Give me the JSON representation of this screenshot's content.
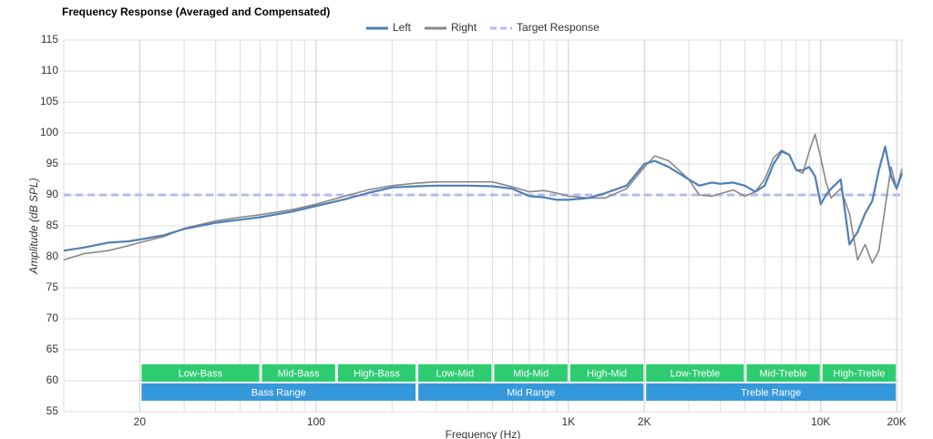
{
  "chart_data": {
    "type": "line",
    "title": "Frequency Response (Averaged and Compensated)",
    "xlabel": "Frequency (Hz)",
    "ylabel": "Amplitude (dB SPL)",
    "xscale": "log",
    "xlim": [
      10,
      21000
    ],
    "ylim": [
      55,
      115
    ],
    "xticks": [
      20,
      100,
      {
        "value": 1000,
        "label": "1K"
      },
      {
        "value": 2000,
        "label": "2K"
      },
      {
        "value": 10000,
        "label": "10K"
      },
      {
        "value": 20000,
        "label": "20K"
      }
    ],
    "xminor": [
      10,
      30,
      40,
      50,
      60,
      70,
      80,
      90,
      200,
      300,
      400,
      500,
      600,
      700,
      800,
      900,
      3000,
      4000,
      5000,
      6000,
      7000,
      8000,
      9000
    ],
    "yticks": [
      55,
      60,
      65,
      70,
      75,
      80,
      85,
      90,
      95,
      100,
      105,
      110,
      115
    ],
    "grid": true,
    "x": [
      10,
      12,
      15,
      18,
      20,
      25,
      30,
      40,
      50,
      60,
      80,
      100,
      130,
      160,
      200,
      250,
      300,
      400,
      500,
      600,
      700,
      800,
      900,
      1000,
      1200,
      1400,
      1700,
      2000,
      2200,
      2500,
      3000,
      3300,
      3700,
      4000,
      4500,
      5000,
      5500,
      6000,
      6500,
      7000,
      7500,
      8000,
      8500,
      9000,
      9500,
      10000,
      10500,
      11000,
      12000,
      13000,
      14000,
      15000,
      16000,
      17000,
      18000,
      19000,
      20000,
      21000
    ],
    "series": [
      {
        "name": "Left",
        "color": "#4f7fb5",
        "width": 2.2,
        "values": [
          81,
          81.5,
          82.3,
          82.5,
          82.8,
          83.5,
          84.5,
          85.5,
          86,
          86.4,
          87.3,
          88.2,
          89.3,
          90.3,
          91.2,
          91.4,
          91.5,
          91.5,
          91.4,
          91,
          89.8,
          89.6,
          89.2,
          89.2,
          89.5,
          90.3,
          91.5,
          95,
          95.5,
          94.5,
          92.5,
          91.5,
          92,
          91.8,
          92,
          91.5,
          90.5,
          91.5,
          95,
          97,
          96.5,
          94,
          94,
          94.5,
          93,
          88.5,
          90,
          91,
          92.5,
          82,
          84,
          87,
          89,
          94,
          97.8,
          93,
          91,
          93.5
        ]
      },
      {
        "name": "Right",
        "color": "#888888",
        "width": 1.6,
        "values": [
          79.5,
          80.5,
          81,
          81.8,
          82.3,
          83.3,
          84.6,
          85.8,
          86.4,
          86.8,
          87.6,
          88.5,
          89.8,
          90.8,
          91.5,
          91.9,
          92.1,
          92.1,
          92.1,
          91.3,
          90.5,
          90.7,
          90.3,
          89.8,
          89.5,
          89.5,
          91,
          94.5,
          96.3,
          95.5,
          92.5,
          90,
          89.8,
          90.2,
          90.8,
          89.8,
          90.5,
          92.5,
          96,
          97.2,
          96.5,
          94,
          93.5,
          97,
          99.8,
          96,
          92,
          89.5,
          91,
          87,
          79.5,
          82,
          79,
          81,
          88,
          94.5,
          91,
          94.2
        ]
      }
    ],
    "target": {
      "name": "Target Response",
      "value": 90,
      "color": "#b8b8f0"
    },
    "bands": [
      {
        "label": "Low-Bass",
        "from": 20,
        "to": 60,
        "row": 0
      },
      {
        "label": "Mid-Bass",
        "from": 60,
        "to": 120,
        "row": 0
      },
      {
        "label": "High-Bass",
        "from": 120,
        "to": 250,
        "row": 0
      },
      {
        "label": "Low-Mid",
        "from": 250,
        "to": 500,
        "row": 0
      },
      {
        "label": "Mid-Mid",
        "from": 500,
        "to": 1000,
        "row": 0
      },
      {
        "label": "High-Mid",
        "from": 1000,
        "to": 2000,
        "row": 0
      },
      {
        "label": "Low-Treble",
        "from": 2000,
        "to": 5000,
        "row": 0
      },
      {
        "label": "Mid-Treble",
        "from": 5000,
        "to": 10000,
        "row": 0
      },
      {
        "label": "High-Treble",
        "from": 10000,
        "to": 20000,
        "row": 0
      },
      {
        "label": "Bass Range",
        "from": 20,
        "to": 250,
        "row": 1
      },
      {
        "label": "Mid Range",
        "from": 250,
        "to": 2000,
        "row": 1
      },
      {
        "label": "Treble Range",
        "from": 2000,
        "to": 20000,
        "row": 1
      }
    ],
    "band_colors": [
      "#2ecc71",
      "#3498db"
    ]
  }
}
